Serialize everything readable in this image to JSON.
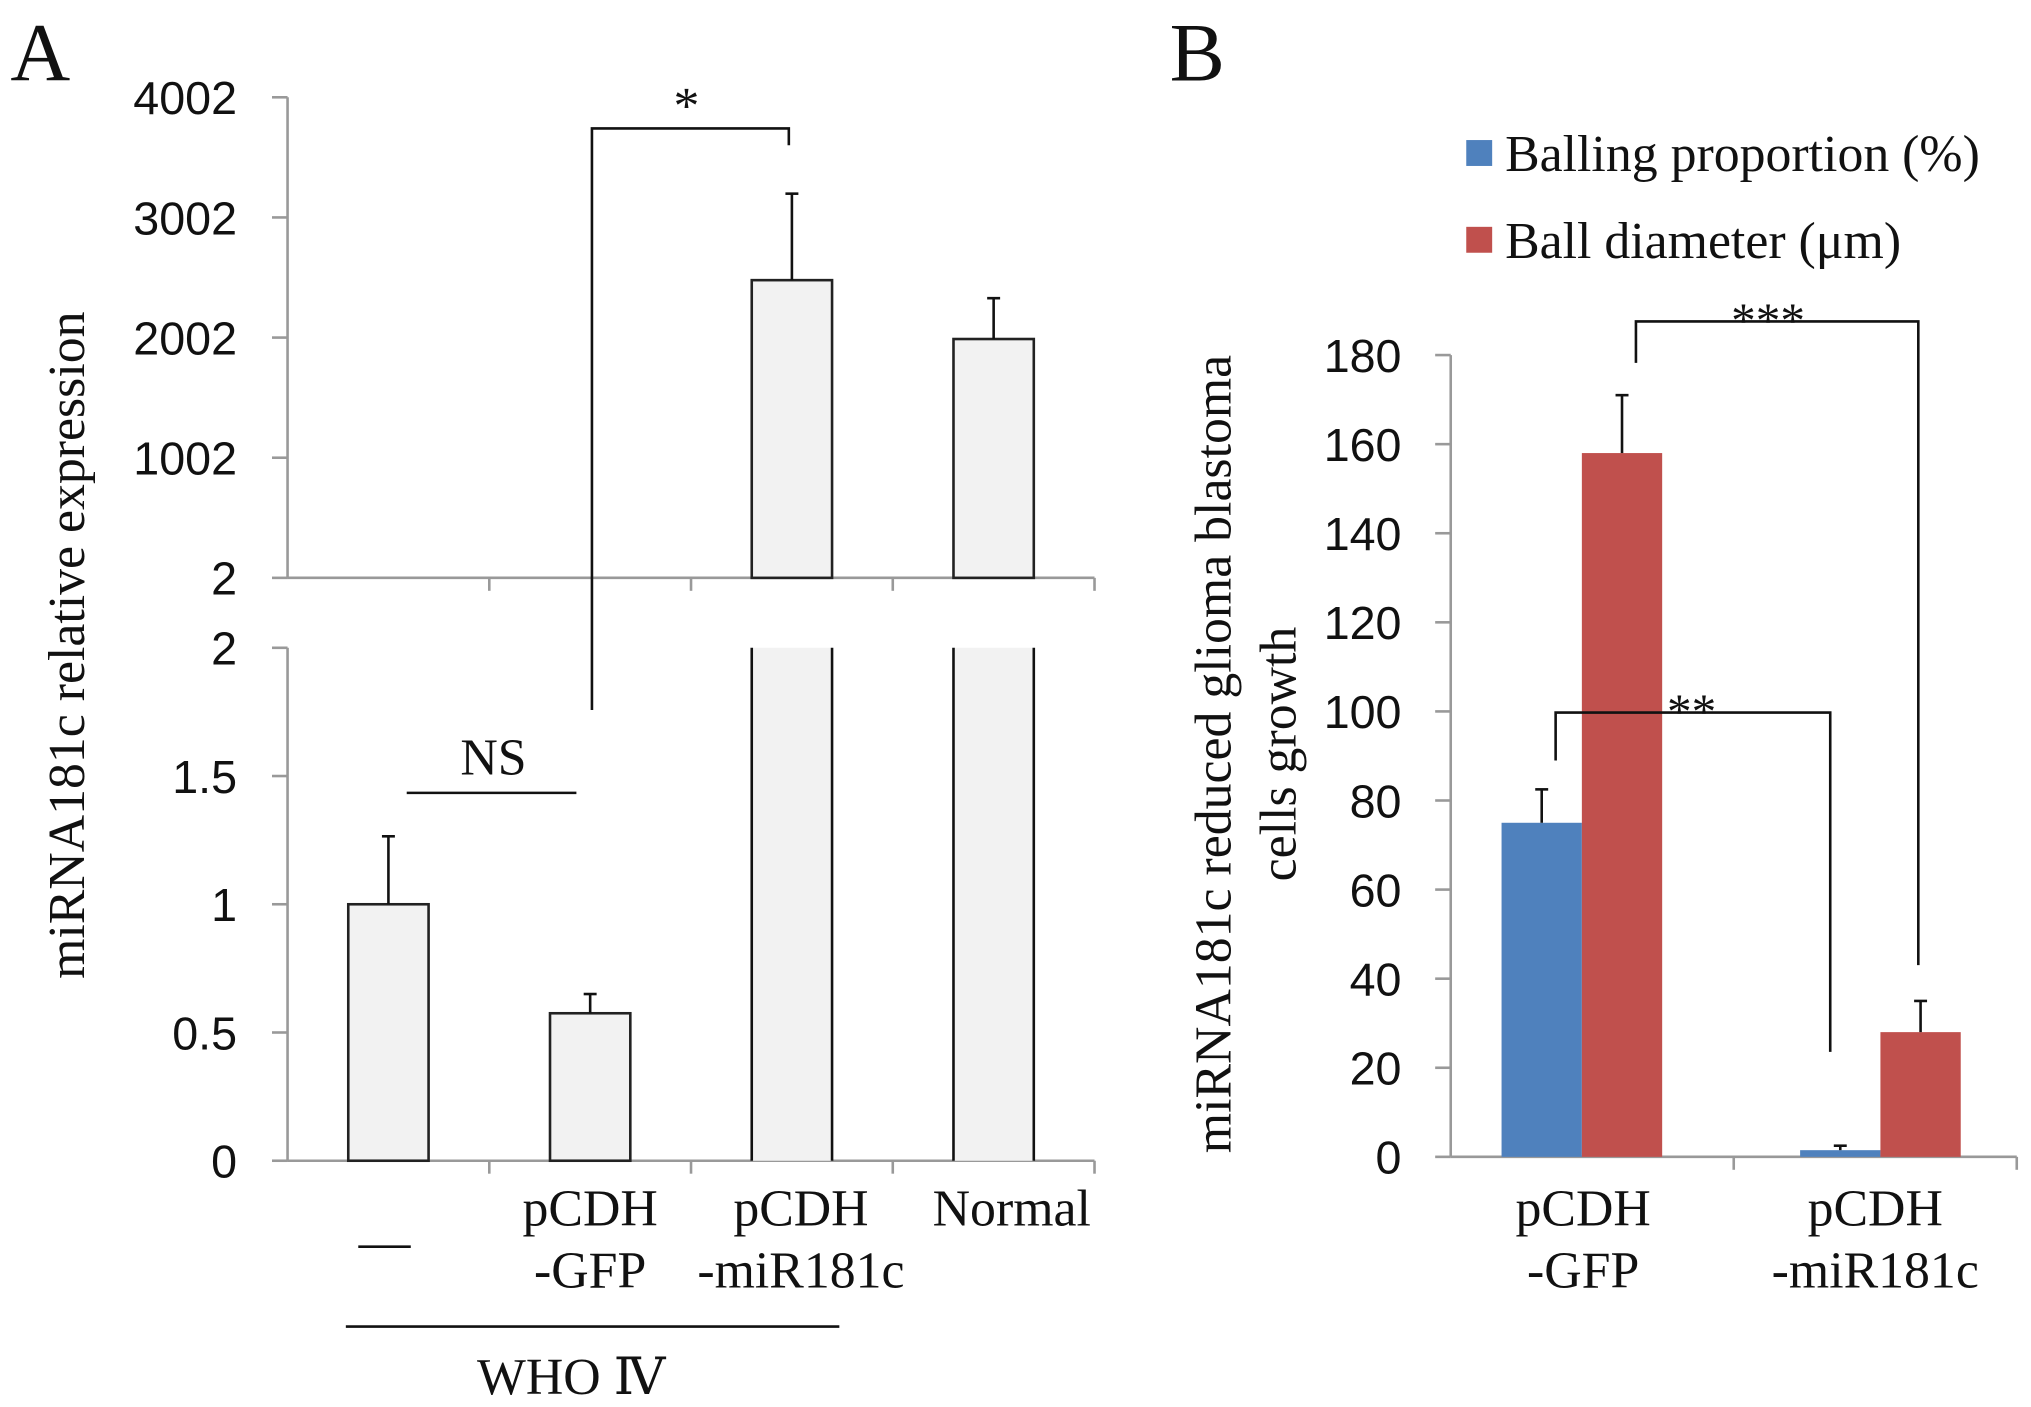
{
  "panels": {
    "a_label": "A",
    "b_label": "B"
  },
  "chart_data": [
    {
      "type": "bar",
      "panel": "A",
      "ylabel": "miRNA181c relative expression",
      "broken_axis": true,
      "upper_segment": {
        "ylim": [
          2,
          4002
        ],
        "ticks": [
          "4002",
          "3002",
          "2002",
          "1002",
          "2"
        ],
        "tick_values": [
          4002,
          3002,
          2002,
          1002,
          2
        ]
      },
      "lower_segment": {
        "ylim": [
          0,
          2
        ],
        "ticks": [
          "2",
          "1.5",
          "1",
          "0.5",
          "0"
        ],
        "tick_values": [
          2,
          1.5,
          1,
          0.5,
          0
        ]
      },
      "categories": [
        [
          "—"
        ],
        [
          "pCDH",
          "-GFP"
        ],
        [
          "pCDH",
          "-miR181c"
        ],
        [
          "Normal"
        ]
      ],
      "values": [
        1.0,
        0.575,
        2480,
        1990
      ],
      "errors": [
        0.265,
        0.075,
        720,
        340
      ],
      "bar_color": "#f2f2f2",
      "group_label": "WHO Ⅳ",
      "annotations": {
        "ns": "NS",
        "star": "*"
      },
      "grid": false
    },
    {
      "type": "bar",
      "panel": "B",
      "ylabel": [
        "miRNA181c reduced glioma blastoma",
        "cells growth"
      ],
      "ylim": [
        0,
        180
      ],
      "ticks": [
        "0",
        "20",
        "40",
        "60",
        "80",
        "100",
        "120",
        "140",
        "160",
        "180"
      ],
      "tick_values": [
        0,
        20,
        40,
        60,
        80,
        100,
        120,
        140,
        160,
        180
      ],
      "categories": [
        [
          "pCDH",
          "-GFP"
        ],
        [
          "pCDH",
          "-miR181c"
        ]
      ],
      "series": [
        {
          "name": "Balling proportion (%)",
          "color": "#4f81bd",
          "values": [
            75,
            1.5
          ],
          "errors": [
            7.5,
            1
          ]
        },
        {
          "name": "Ball diameter (μm)",
          "color": "#c0504d",
          "values": [
            158,
            28
          ],
          "errors": [
            13,
            7
          ]
        }
      ],
      "legend": "top-right",
      "annotations": {
        "double": "**",
        "triple": "***"
      },
      "grid": false
    }
  ]
}
